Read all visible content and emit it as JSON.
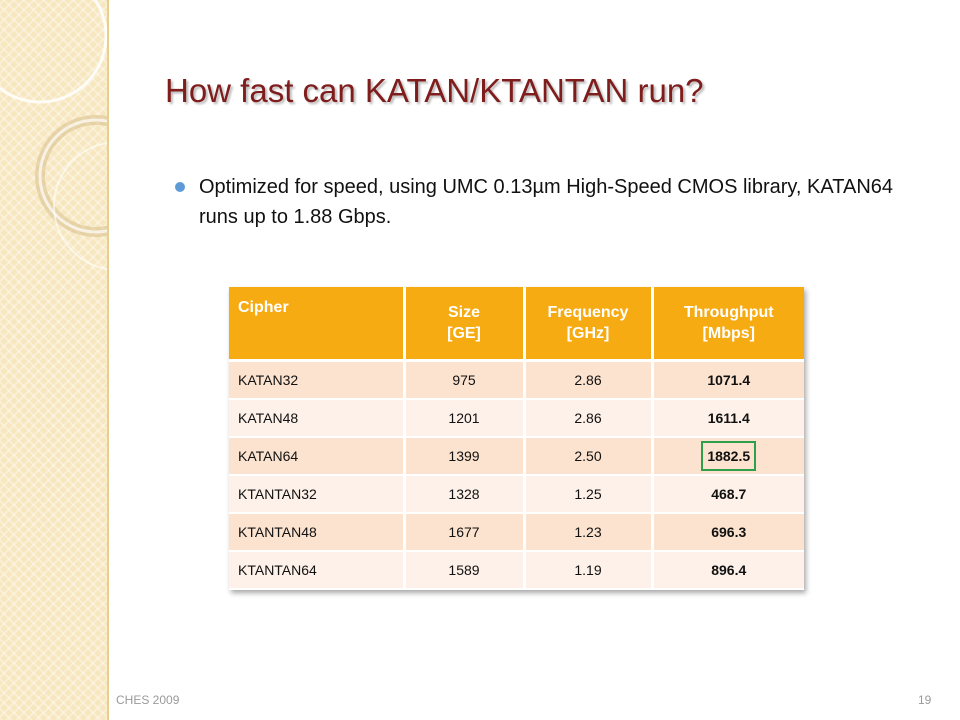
{
  "slide": {
    "title": "How fast can KATAN/KTANTAN run?",
    "bullets": [
      "Optimized for speed, using UMC 0.13µm High-Speed CMOS library, KATAN64 runs up to 1.88 Gbps."
    ]
  },
  "table": {
    "headers": {
      "cipher": "Cipher",
      "size_line1": "Size",
      "size_line2": "[GE]",
      "frequency_line1": "Frequency",
      "frequency_line2": "[GHz]",
      "throughput_line1": "Throughput",
      "throughput_line2": "[Mbps]"
    },
    "rows": [
      {
        "cipher": "KATAN32",
        "size": "975",
        "frequency": "2.86",
        "throughput": "1071.4"
      },
      {
        "cipher": "KATAN48",
        "size": "1201",
        "frequency": "2.86",
        "throughput": "1611.4"
      },
      {
        "cipher": "KATAN64",
        "size": "1399",
        "frequency": "2.50",
        "throughput": "1882.5"
      },
      {
        "cipher": "KTANTAN32",
        "size": "1328",
        "frequency": "1.25",
        "throughput": "468.7"
      },
      {
        "cipher": "KTANTAN48",
        "size": "1677",
        "frequency": "1.23",
        "throughput": "696.3"
      },
      {
        "cipher": "KTANTAN64",
        "size": "1589",
        "frequency": "1.19",
        "throughput": "896.4"
      }
    ],
    "highlight_row": 2,
    "highlight_color": "#2fa04a",
    "header_color": "#f7ab13"
  },
  "footer": {
    "left": "CHES 2009",
    "page_number": "19"
  }
}
